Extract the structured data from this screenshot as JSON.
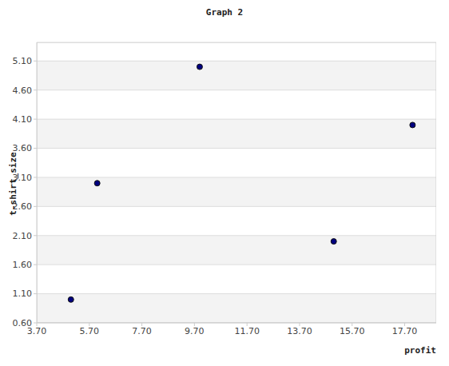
{
  "chart_data": {
    "type": "scatter",
    "title": "Graph 2",
    "x_label": "profit",
    "y_label": "t-shirt_size",
    "x": [
      5.0,
      6.0,
      9.9,
      15.0,
      18.0
    ],
    "values": [
      1.0,
      3.0,
      5.0,
      2.0,
      4.0
    ],
    "color": "#000080",
    "marker": "circle",
    "xlim": [
      3.7,
      18.9
    ],
    "ylim": [
      0.6,
      5.42
    ],
    "xticks": [
      {
        "value": 3.7,
        "label": "3.70"
      },
      {
        "value": 5.7,
        "label": "5.70"
      },
      {
        "value": 7.7,
        "label": "7.70"
      },
      {
        "value": 9.7,
        "label": "9.70"
      },
      {
        "value": 11.7,
        "label": "11.70"
      },
      {
        "value": 13.7,
        "label": "13.70"
      },
      {
        "value": 15.7,
        "label": "15.70"
      },
      {
        "value": 17.7,
        "label": "17.70"
      }
    ],
    "yticks": [
      {
        "value": 0.6,
        "label": "0.60"
      },
      {
        "value": 1.1,
        "label": "1.10"
      },
      {
        "value": 1.6,
        "label": "1.60"
      },
      {
        "value": 2.1,
        "label": "2.10"
      },
      {
        "value": 2.6,
        "label": "2.60"
      },
      {
        "value": 3.1,
        "label": "3.10"
      },
      {
        "value": 3.6,
        "label": "3.60"
      },
      {
        "value": 4.1,
        "label": "4.10"
      },
      {
        "value": 4.6,
        "label": "4.60"
      },
      {
        "value": 5.1,
        "label": "5.10"
      }
    ],
    "grid": true
  }
}
